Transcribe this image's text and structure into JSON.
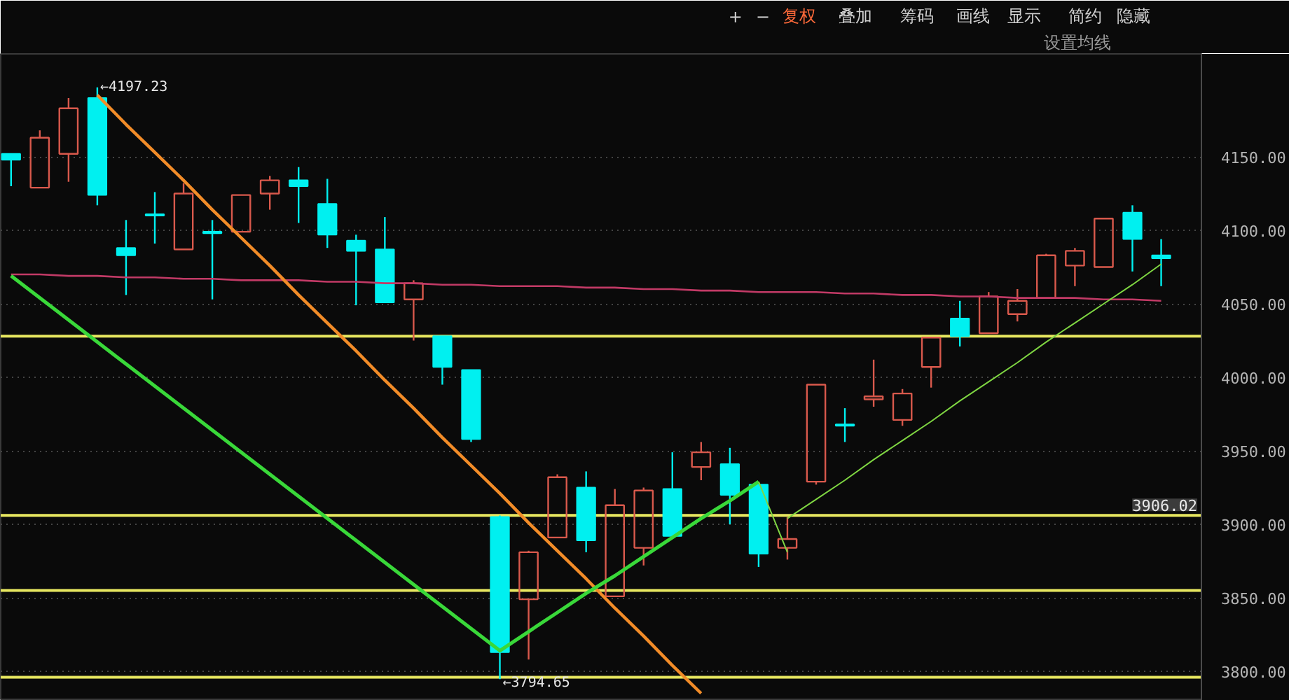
{
  "chart_data": {
    "type": "candlestick",
    "categories": [
      null,
      null,
      null,
      null,
      null,
      null,
      null,
      null,
      null,
      null,
      null,
      null,
      null,
      null,
      null,
      null,
      null,
      null,
      null,
      null,
      null,
      null,
      null,
      null,
      null,
      null,
      null,
      null,
      null,
      null,
      null,
      null,
      null,
      null,
      null,
      null,
      null,
      null,
      null,
      null,
      null
    ],
    "ohlc": [
      [
        4152,
        4152,
        4130,
        4148
      ],
      [
        4129,
        4168,
        4129,
        4163
      ],
      [
        4152,
        4190,
        4133,
        4183
      ],
      [
        4190,
        4197.23,
        4117,
        4124
      ],
      [
        4088,
        4107,
        4056,
        4083
      ],
      [
        4111,
        4126,
        4091,
        4110
      ],
      [
        4087,
        4132,
        4087,
        4125
      ],
      [
        4099,
        4107,
        4053,
        4098
      ],
      [
        4099,
        4124,
        4099,
        4124
      ],
      [
        4125,
        4137,
        4114,
        4134
      ],
      [
        4134,
        4143,
        4105,
        4130
      ],
      [
        4118,
        4135,
        4088,
        4097
      ],
      [
        4093,
        4097,
        4049,
        4086
      ],
      [
        4087,
        4109,
        4051,
        4051
      ],
      [
        4053,
        4066,
        4025,
        4064
      ],
      [
        4028,
        4028,
        3995,
        4007
      ],
      [
        4005,
        4005,
        3956,
        3958
      ],
      [
        3905,
        3906,
        3794.65,
        3813
      ],
      [
        3849,
        3882,
        3808,
        3881
      ],
      [
        3891,
        3934,
        3891,
        3932
      ],
      [
        3925,
        3936,
        3881,
        3889
      ],
      [
        3851,
        3924,
        3851,
        3913
      ],
      [
        3884,
        3925,
        3872,
        3923
      ],
      [
        3924,
        3949,
        3892,
        3892
      ],
      [
        3939,
        3956,
        3930,
        3949
      ],
      [
        3941,
        3952,
        3900,
        3920
      ],
      [
        3927,
        3927,
        3871,
        3880
      ],
      [
        3884,
        3905,
        3876,
        3890
      ],
      [
        3929,
        3995,
        3927,
        3995
      ],
      [
        3968,
        3979,
        3956,
        3967
      ],
      [
        3985,
        4012,
        3980,
        3987
      ],
      [
        3971,
        3992,
        3967,
        3989
      ],
      [
        4007,
        4027,
        3993,
        4027
      ],
      [
        4040,
        4052,
        4021,
        4028
      ],
      [
        4030,
        4058,
        4030,
        4055
      ],
      [
        4043,
        4060,
        4038,
        4052
      ],
      [
        4054,
        4084,
        4054,
        4083
      ],
      [
        4076,
        4088,
        4062,
        4086
      ],
      [
        4075,
        4108,
        4075,
        4108
      ],
      [
        4112,
        4117,
        4072,
        4094
      ],
      [
        4083,
        4094,
        4062,
        4081
      ]
    ],
    "colors": [
      "#00f0f0",
      "#d9594c",
      "#d9594c",
      "#00f0f0",
      "#00f0f0",
      "#00f0f0",
      "#d9594c",
      "#00f0f0",
      "#d9594c",
      "#d9594c",
      "#00f0f0",
      "#00f0f0",
      "#00f0f0",
      "#00f0f0",
      "#d9594c",
      "#00f0f0",
      "#00f0f0",
      "#00f0f0",
      "#d9594c",
      "#d9594c",
      "#00f0f0",
      "#d9594c",
      "#d9594c",
      "#00f0f0",
      "#d9594c",
      "#00f0f0",
      "#00f0f0",
      "#d9594c",
      "#d9594c",
      "#00f0f0",
      "#d9594c",
      "#d9594c",
      "#d9594c",
      "#00f0f0",
      "#d9594c",
      "#d9594c",
      "#d9594c",
      "#d9594c",
      "#d9594c",
      "#00f0f0",
      "#00f0f0"
    ],
    "series": [
      {
        "type": "line",
        "color": "#c23a66",
        "values": [
          4070,
          4070,
          4069,
          4069,
          4068,
          4068,
          4067,
          4067,
          4066,
          4066,
          4066,
          4065,
          4065,
          4064,
          4064,
          4063,
          4063,
          4062,
          4062,
          4062,
          4061,
          4061,
          4060,
          4060,
          4059,
          4059,
          4058,
          4058,
          4058,
          4057,
          4057,
          4056,
          4056,
          4055,
          4055,
          4054,
          4054,
          4054,
          4053,
          4053,
          4052
        ]
      },
      {
        "type": "line",
        "color": "#f28c28",
        "values": [
          null,
          null,
          null,
          4192,
          4172,
          4153,
          4134,
          4114,
          4095,
          4076,
          4056,
          4037,
          4018,
          3998,
          3979,
          3959,
          3940,
          3921,
          3901,
          3882,
          3863,
          3843,
          3824,
          3804,
          3785,
          null,
          null,
          null,
          null,
          null,
          null,
          null,
          null,
          null,
          null,
          null,
          null,
          null,
          null,
          null,
          null
        ]
      },
      {
        "type": "line",
        "color": "#39d839",
        "values": [
          4069,
          4054,
          4039,
          4024,
          4009,
          3994,
          3979,
          3964,
          3949,
          3934,
          3919,
          3904,
          3889,
          3874,
          3859,
          3844,
          3829,
          3814,
          3827,
          3840,
          3853,
          3865,
          3878,
          3891,
          3904,
          3916,
          3929,
          null,
          null,
          null,
          null,
          null,
          null,
          null,
          null,
          null,
          null,
          null,
          null,
          null,
          null
        ]
      },
      {
        "type": "line",
        "color": "#7fd642",
        "values": [
          null,
          null,
          null,
          null,
          null,
          null,
          null,
          null,
          null,
          null,
          null,
          null,
          null,
          null,
          null,
          null,
          null,
          null,
          null,
          null,
          null,
          null,
          null,
          null,
          null,
          null,
          3929,
          3881,
          null,
          null,
          null,
          null,
          null,
          null,
          null,
          null,
          null,
          null,
          null,
          null,
          null
        ]
      },
      {
        "type": "line",
        "color": "#7fd642",
        "values": [
          null,
          null,
          null,
          null,
          null,
          null,
          null,
          null,
          null,
          null,
          null,
          null,
          null,
          null,
          null,
          null,
          null,
          null,
          null,
          null,
          null,
          null,
          null,
          null,
          null,
          null,
          null,
          3904,
          3917,
          3930,
          3944,
          3957,
          3970,
          3984,
          3997,
          4010,
          4024,
          4037,
          4050,
          4063,
          4077
        ]
      }
    ],
    "ylim": [
      3780,
      4220
    ],
    "yticks": [
      {
        "value": 3800,
        "label": "3800.00"
      },
      {
        "value": 3850,
        "label": "3850.00"
      },
      {
        "value": 3900,
        "label": "3900.00"
      },
      {
        "value": 3950,
        "label": "3950.00"
      },
      {
        "value": 4000,
        "label": "4000.00"
      },
      {
        "value": 4050,
        "label": "4050.00"
      },
      {
        "value": 4100,
        "label": "4100.00"
      },
      {
        "value": 4150,
        "label": "4150.00"
      }
    ],
    "ref_lines": [
      {
        "axis": "y",
        "value": 4028,
        "color": "#e8e860"
      },
      {
        "axis": "y",
        "value": 3906.02,
        "label": "3906.02",
        "color": "#e8e860"
      },
      {
        "axis": "y",
        "value": 3855,
        "color": "#e8e860"
      },
      {
        "axis": "y",
        "value": 3796,
        "color": "#e8e860"
      }
    ],
    "annotations": [
      "←4197.23",
      "←3794.65",
      "+",
      "−",
      "复权",
      "叠加",
      "筹码",
      "画线",
      "显示",
      "简约",
      "隐藏",
      "设置均线"
    ],
    "grid": "y",
    "tick_labels": "y"
  }
}
